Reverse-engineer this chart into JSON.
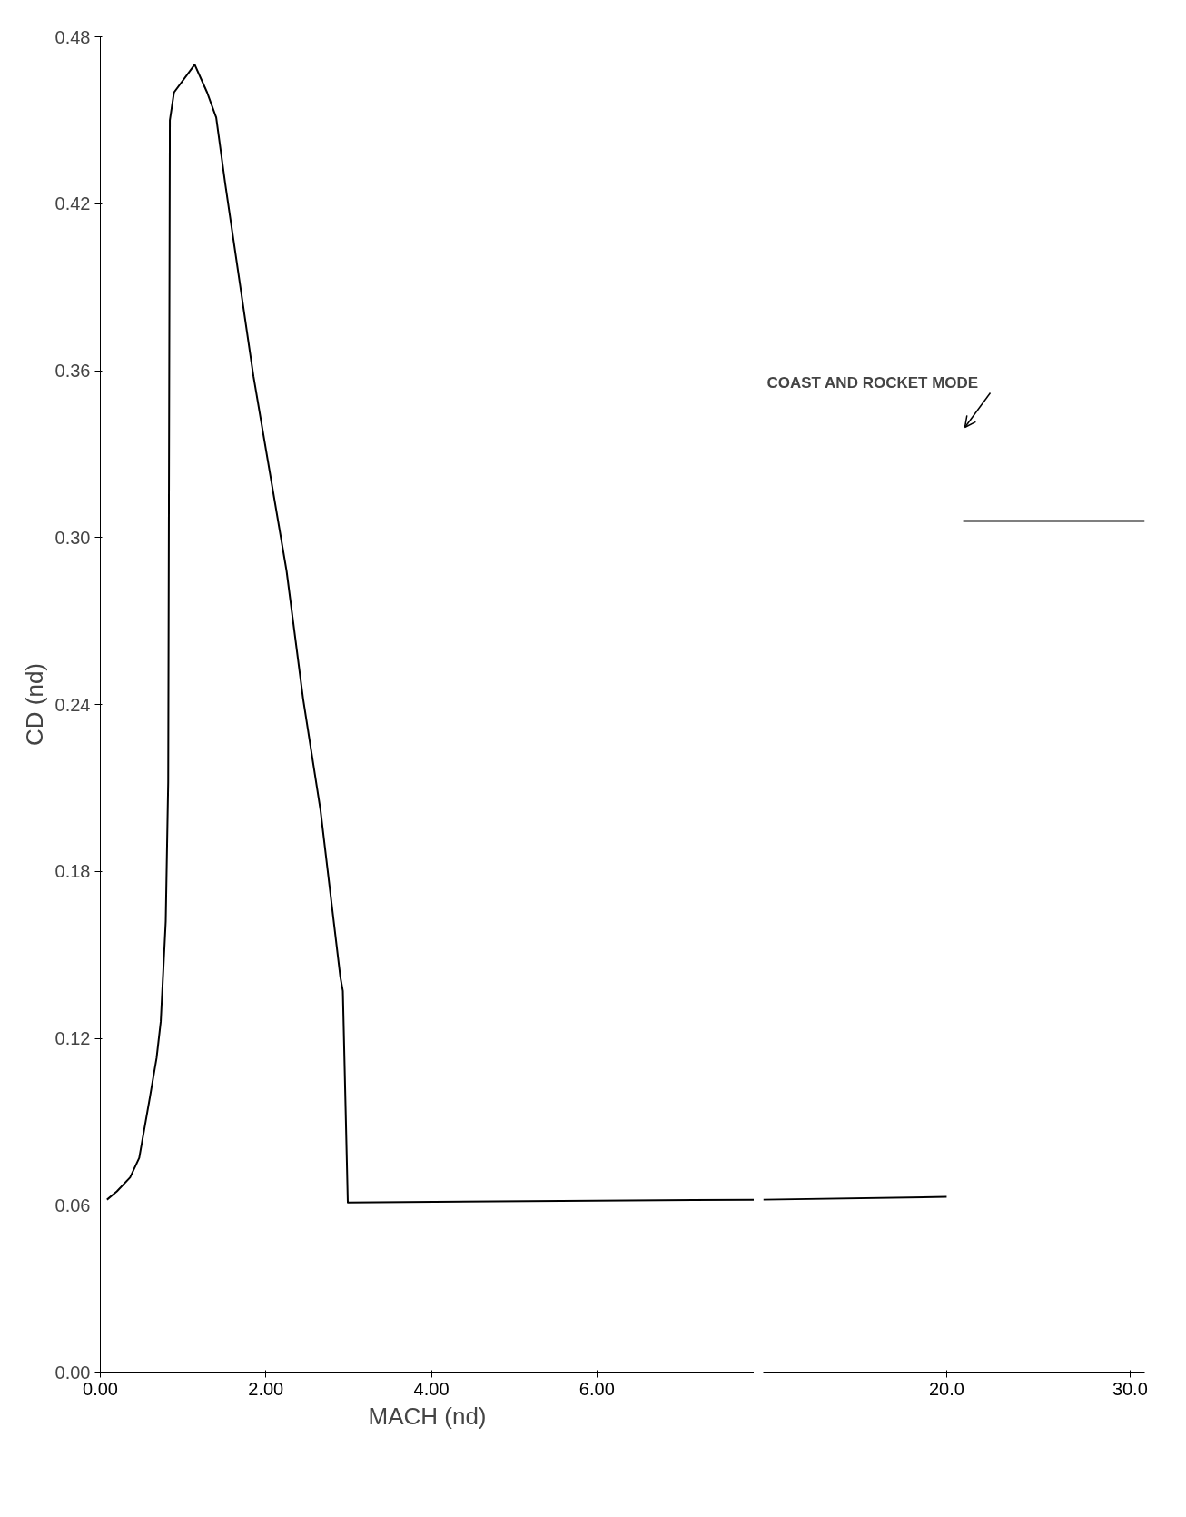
{
  "chart_data": [
    {
      "type": "line",
      "xlabel": "MACH (nd)",
      "ylabel": "CD (nd)",
      "xlim": [
        0,
        7.9
      ],
      "ylim": [
        0,
        0.48
      ],
      "xticks": [
        {
          "value": 0,
          "label": "0.00"
        },
        {
          "value": 2,
          "label": "2.00"
        },
        {
          "value": 4,
          "label": "4.00"
        },
        {
          "value": 6,
          "label": "6.00"
        }
      ],
      "yticks": [
        {
          "value": 0,
          "label": "0.00"
        },
        {
          "value": 0.06,
          "label": "0.06"
        },
        {
          "value": 0.12,
          "label": "0.12"
        },
        {
          "value": 0.18,
          "label": "0.18"
        },
        {
          "value": 0.24,
          "label": "0.24"
        },
        {
          "value": 0.3,
          "label": "0.30"
        },
        {
          "value": 0.36,
          "label": "0.36"
        },
        {
          "value": 0.42,
          "label": "0.42"
        },
        {
          "value": 0.48,
          "label": "0.48"
        }
      ],
      "grid": false,
      "series": [
        {
          "color": "#000000",
          "x": [
            0.08,
            0.2,
            0.36,
            0.47,
            0.6,
            0.68,
            0.73,
            0.79,
            0.82,
            0.84,
            0.89,
            1.14,
            1.29,
            1.4,
            1.51,
            1.85,
            2.25,
            2.45,
            2.66,
            2.9,
            2.93,
            2.99,
            7.9
          ],
          "values": [
            0.062,
            0.065,
            0.07,
            0.077,
            0.099,
            0.113,
            0.126,
            0.162,
            0.212,
            0.45,
            0.46,
            0.47,
            0.46,
            0.451,
            0.427,
            0.358,
            0.288,
            0.242,
            0.202,
            0.142,
            0.137,
            0.061,
            0.062
          ]
        }
      ]
    },
    {
      "type": "line",
      "xlim": [
        10,
        30.8
      ],
      "ylim": [
        0,
        0.48
      ],
      "tick_labels": "x",
      "xticks": [
        {
          "value": 20,
          "label": "20.0"
        },
        {
          "value": 30,
          "label": "30.0"
        }
      ],
      "grid": false,
      "annotations": [
        "COAST AND ROCKET MODE"
      ],
      "series": [
        {
          "color": "#000000",
          "x": [
            10,
            20
          ],
          "values": [
            0.062,
            0.063
          ]
        },
        {
          "color": "#000000",
          "x": [
            20.9,
            30.8
          ],
          "values": [
            0.306,
            0.306
          ]
        }
      ]
    }
  ]
}
